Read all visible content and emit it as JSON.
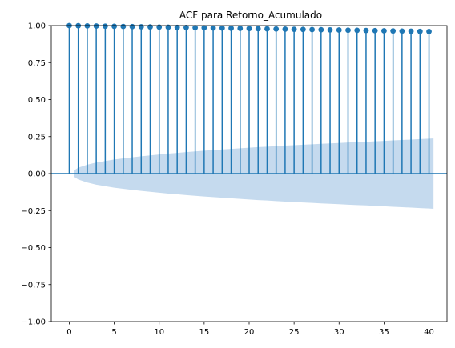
{
  "chart_data": {
    "type": "stem",
    "title": "ACF para Retorno_Acumulado",
    "xlabel": "",
    "ylabel": "",
    "xlim": [
      -2,
      42
    ],
    "ylim": [
      -1.0,
      1.0
    ],
    "xticks": [
      0,
      5,
      10,
      15,
      20,
      25,
      30,
      35,
      40
    ],
    "yticks": [
      -1.0,
      -0.75,
      -0.5,
      -0.25,
      0.0,
      0.25,
      0.5,
      0.75,
      1.0
    ],
    "xtick_labels": [
      "0",
      "5",
      "10",
      "15",
      "20",
      "25",
      "30",
      "35",
      "40"
    ],
    "ytick_labels": [
      "−1.00",
      "−0.75",
      "−0.50",
      "−0.25",
      "0.00",
      "0.25",
      "0.50",
      "0.75",
      "1.00"
    ],
    "lags": [
      0,
      1,
      2,
      3,
      4,
      5,
      6,
      7,
      8,
      9,
      10,
      11,
      12,
      13,
      14,
      15,
      16,
      17,
      18,
      19,
      20,
      21,
      22,
      23,
      24,
      25,
      26,
      27,
      28,
      29,
      30,
      31,
      32,
      33,
      34,
      35,
      36,
      37,
      38,
      39,
      40
    ],
    "acf": [
      1.0,
      0.999,
      0.998,
      0.997,
      0.996,
      0.995,
      0.994,
      0.993,
      0.992,
      0.991,
      0.99,
      0.989,
      0.988,
      0.987,
      0.986,
      0.985,
      0.984,
      0.983,
      0.982,
      0.981,
      0.98,
      0.979,
      0.978,
      0.977,
      0.976,
      0.975,
      0.974,
      0.973,
      0.972,
      0.971,
      0.97,
      0.969,
      0.968,
      0.967,
      0.966,
      0.965,
      0.964,
      0.963,
      0.962,
      0.961,
      0.96
    ],
    "confidence_band": {
      "lags": [
        0.5,
        1,
        2,
        3,
        4,
        5,
        6,
        7,
        8,
        9,
        10,
        11,
        12,
        13,
        14,
        15,
        16,
        17,
        18,
        19,
        20,
        21,
        22,
        23,
        24,
        25,
        26,
        27,
        28,
        29,
        30,
        31,
        32,
        33,
        34,
        35,
        36,
        37,
        38,
        39,
        40,
        40.5
      ],
      "upper": [
        0.02,
        0.04,
        0.06,
        0.075,
        0.085,
        0.095,
        0.103,
        0.11,
        0.117,
        0.123,
        0.129,
        0.135,
        0.14,
        0.145,
        0.15,
        0.155,
        0.159,
        0.163,
        0.167,
        0.171,
        0.175,
        0.179,
        0.182,
        0.186,
        0.189,
        0.192,
        0.195,
        0.198,
        0.201,
        0.204,
        0.207,
        0.21,
        0.213,
        0.215,
        0.218,
        0.221,
        0.224,
        0.227,
        0.23,
        0.233,
        0.236,
        0.238
      ]
    },
    "colors": {
      "stem": "#1f77b4",
      "band": "#c5daee",
      "zero_line": "#1f77b4"
    }
  }
}
